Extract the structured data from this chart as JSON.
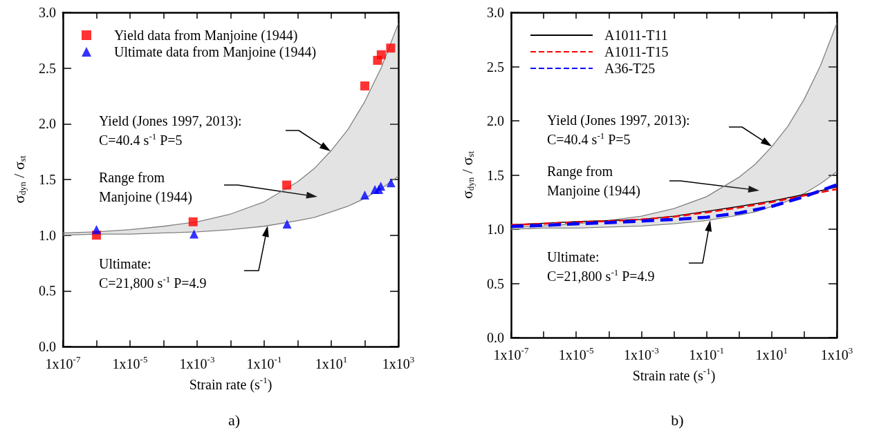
{
  "chart_data": [
    {
      "type": "scatter",
      "title": "a)",
      "xlabel": "Strain rate (s$^{-1}$)",
      "ylabel": "σ$_{dyn}$ / σ$_{st}$",
      "log": "x",
      "legend": "top left",
      "grid": false,
      "xlim": [
        1e-07,
        1000
      ],
      "xticks": [
        {
          "value": 1e-07,
          "label": "1x10$^{-7}$"
        },
        {
          "value": 1e-06,
          "label": null
        },
        {
          "value": 1e-05,
          "label": "1x10$^{-5}$"
        },
        {
          "value": 0.0001,
          "label": null
        },
        {
          "value": 0.001,
          "label": "1x10$^{-3}$"
        },
        {
          "value": 0.01,
          "label": null
        },
        {
          "value": 0.1,
          "label": "1x10$^{-1}$"
        },
        {
          "value": 1,
          "label": null
        },
        {
          "value": 10,
          "label": "1x10$^{1}$"
        },
        {
          "value": 100,
          "label": null
        },
        {
          "value": 1000,
          "label": "1x10$^{3}$"
        }
      ],
      "ylim": [
        0,
        3
      ],
      "yticks": [
        {
          "value": 0,
          "label": "0.0"
        },
        {
          "value": 0.5,
          "label": "0.5"
        },
        {
          "value": 1,
          "label": "1.0"
        },
        {
          "value": 1.5,
          "label": "1.5"
        },
        {
          "value": 2,
          "label": "2.0"
        },
        {
          "value": 2.5,
          "label": "2.5"
        },
        {
          "value": 3,
          "label": "3.0"
        }
      ],
      "series": [
        {
          "type": "line",
          "color": "#808080",
          "marker": "none",
          "x": [
            1e-07,
            1e-06,
            1e-05,
            0.0001,
            0.001,
            0.01,
            0.1,
            1,
            3.16,
            10,
            31.6,
            100,
            316,
            1000
          ],
          "values": [
            1.02,
            1.03,
            1.05,
            1.08,
            1.12,
            1.19,
            1.3,
            1.48,
            1.6,
            1.76,
            1.95,
            2.2,
            2.51,
            2.9
          ]
        },
        {
          "type": "line",
          "color": "#808080",
          "marker": "none",
          "x": [
            1e-07,
            1e-06,
            1e-05,
            0.0001,
            0.001,
            0.01,
            0.1,
            1,
            3.16,
            10,
            31.6,
            100,
            316,
            1000
          ],
          "values": [
            1.0,
            1.01,
            1.01,
            1.02,
            1.03,
            1.05,
            1.08,
            1.13,
            1.16,
            1.21,
            1.26,
            1.33,
            1.42,
            1.53
          ],
          "lower": [
            1.0,
            1.01,
            1.01,
            1.02,
            1.03,
            1.05,
            1.08,
            1.13,
            1.16,
            1.21,
            1.26,
            1.33,
            1.42,
            1.53
          ],
          "upper": [
            1.02,
            1.03,
            1.05,
            1.08,
            1.12,
            1.19,
            1.3,
            1.48,
            1.6,
            1.76,
            1.95,
            2.2,
            2.51,
            2.9
          ]
        },
        {
          "name": "Yield data from Manjoine (1944)",
          "color": "#ff0000",
          "marker": "square",
          "x": [
            1e-06,
            0.00076,
            0.47,
            100,
            240,
            310,
            590
          ],
          "values": [
            1.0,
            1.12,
            1.45,
            2.34,
            2.57,
            2.62,
            2.68
          ]
        },
        {
          "name": "Ultimate data from Manjoine (1944)",
          "color": "#0000ff",
          "marker": "triangle",
          "x": [
            1e-06,
            0.00081,
            0.48,
            100,
            200,
            260,
            300,
            600
          ],
          "values": [
            1.05,
            1.01,
            1.1,
            1.36,
            1.41,
            1.41,
            1.44,
            1.47
          ]
        }
      ],
      "annotations": [
        "Yield (Jones 1997, 2013):\nC=40.4 s$^{-1}$ P=5",
        "Range from\nManjoine (1944)",
        "Ultimate:\nC=21,800 s$^{-1}$ P=4.9"
      ]
    },
    {
      "type": "line",
      "title": "b)",
      "xlabel": "Strain rate (s$^{-1}$)",
      "ylabel": "σ$_{dyn}$ / σ$_{st}$",
      "log": "x",
      "legend": "top left",
      "grid": false,
      "marker": "none",
      "xlim": [
        1e-07,
        1000
      ],
      "xticks": [
        {
          "value": 1e-07,
          "label": "1x10$^{-7}$"
        },
        {
          "value": 1e-06,
          "label": null
        },
        {
          "value": 1e-05,
          "label": "1x10$^{-5}$"
        },
        {
          "value": 0.0001,
          "label": null
        },
        {
          "value": 0.001,
          "label": "1x10$^{-3}$"
        },
        {
          "value": 0.01,
          "label": null
        },
        {
          "value": 0.1,
          "label": "1x10$^{-1}$"
        },
        {
          "value": 1,
          "label": null
        },
        {
          "value": 10,
          "label": "1x10$^{1}$"
        },
        {
          "value": 100,
          "label": null
        },
        {
          "value": 1000,
          "label": "1x10$^{3}$"
        }
      ],
      "ylim": [
        0,
        3
      ],
      "yticks": [
        {
          "value": 0,
          "label": "0.0"
        },
        {
          "value": 0.5,
          "label": "0.5"
        },
        {
          "value": 1,
          "label": "1.0"
        },
        {
          "value": 1.5,
          "label": "1.5"
        },
        {
          "value": 2,
          "label": "2.0"
        },
        {
          "value": 2.5,
          "label": "2.5"
        },
        {
          "value": 3,
          "label": "3.0"
        }
      ],
      "series": [
        {
          "color": "#808080",
          "x": [
            1e-07,
            1e-06,
            1e-05,
            0.0001,
            0.001,
            0.01,
            0.1,
            1,
            3.16,
            10,
            31.6,
            100,
            316,
            1000
          ],
          "values": [
            1.02,
            1.03,
            1.05,
            1.08,
            1.12,
            1.19,
            1.3,
            1.48,
            1.6,
            1.76,
            1.95,
            2.2,
            2.51,
            2.9
          ]
        },
        {
          "color": "#808080",
          "x": [
            1e-07,
            1e-06,
            1e-05,
            0.0001,
            0.001,
            0.01,
            0.1,
            1,
            3.16,
            10,
            31.6,
            100,
            316,
            1000
          ],
          "values": [
            1.0,
            1.01,
            1.01,
            1.02,
            1.03,
            1.05,
            1.08,
            1.13,
            1.16,
            1.21,
            1.26,
            1.33,
            1.42,
            1.53
          ],
          "lower": [
            1.0,
            1.01,
            1.01,
            1.02,
            1.03,
            1.05,
            1.08,
            1.13,
            1.16,
            1.21,
            1.26,
            1.33,
            1.42,
            1.53
          ],
          "upper": [
            1.02,
            1.03,
            1.05,
            1.08,
            1.12,
            1.19,
            1.3,
            1.48,
            1.6,
            1.76,
            1.95,
            2.2,
            2.51,
            2.9
          ]
        },
        {
          "name": "A1011-T11",
          "color": "#000000",
          "line_style": "solid",
          "x": [
            1e-07,
            1e-06,
            1e-05,
            0.0001,
            0.001,
            0.01,
            0.1,
            1,
            10,
            100,
            1000
          ],
          "values": [
            1.04,
            1.055,
            1.07,
            1.08,
            1.09,
            1.12,
            1.165,
            1.21,
            1.26,
            1.32,
            1.39
          ]
        },
        {
          "name": "A1011-T15",
          "color": "#ff0000",
          "line_style": "dashed",
          "x": [
            1e-07,
            1e-06,
            1e-05,
            0.0001,
            0.001,
            0.01,
            0.1,
            1,
            10,
            100,
            1000
          ],
          "values": [
            1.04,
            1.05,
            1.065,
            1.075,
            1.09,
            1.115,
            1.155,
            1.2,
            1.25,
            1.31,
            1.37
          ]
        },
        {
          "name": "A36-T25",
          "color": "#0000ff",
          "line_style": "dashed",
          "x": [
            1e-07,
            1e-06,
            1e-05,
            0.0001,
            0.001,
            0.01,
            0.1,
            1,
            10,
            100,
            1000
          ],
          "values": [
            1.025,
            1.035,
            1.05,
            1.06,
            1.075,
            1.09,
            1.11,
            1.15,
            1.21,
            1.3,
            1.41
          ]
        }
      ],
      "annotations": [
        "Yield (Jones 1997, 2013):\nC=40.4 s$^{-1}$ P=5",
        "Range from\nManjoine (1944)",
        "Ultimate:\nC=21,800 s$^{-1}$ P=4.9"
      ]
    }
  ]
}
